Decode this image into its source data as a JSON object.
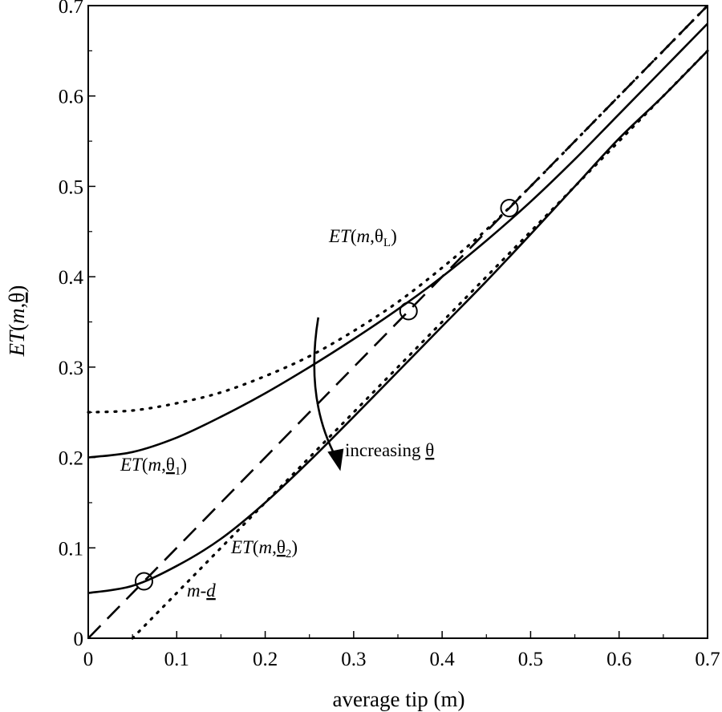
{
  "chart_data": {
    "type": "line",
    "xlabel": "average tip (m)",
    "ylabel": "ET(m,θ)",
    "xlim": [
      0,
      0.7
    ],
    "ylim": [
      0,
      0.7
    ],
    "xticks": [
      0,
      0.1,
      0.2,
      0.3,
      0.4,
      0.5,
      0.6,
      0.7
    ],
    "yticks": [
      0,
      0.1,
      0.2,
      0.3,
      0.4,
      0.5,
      0.6,
      0.7
    ],
    "xtick_labels": [
      "0",
      "0.1",
      "0.2",
      "0.3",
      "0.4",
      "0.5",
      "0.6",
      "0.7"
    ],
    "ytick_labels": [
      "0",
      "0.1",
      "0.2",
      "0.3",
      "0.4",
      "0.5",
      "0.6",
      "0.7"
    ],
    "grid": false,
    "series": [
      {
        "style": "dashed",
        "x": [
          0,
          0.7
        ],
        "y": [
          0,
          0.7
        ]
      },
      {
        "style": "dotted",
        "x": [
          0.05,
          0.7
        ],
        "y": [
          0,
          0.65
        ]
      },
      {
        "style": "dotted",
        "x": [
          0,
          0.05,
          0.1,
          0.15,
          0.2,
          0.25,
          0.3,
          0.35,
          0.4,
          0.45,
          0.5,
          0.55,
          0.6,
          0.65,
          0.7
        ],
        "y": [
          0.25,
          0.252,
          0.26,
          0.272,
          0.29,
          0.312,
          0.34,
          0.372,
          0.41,
          0.452,
          0.5,
          0.55,
          0.6,
          0.65,
          0.7
        ]
      },
      {
        "style": "solid",
        "x": [
          0,
          0.05,
          0.1,
          0.15,
          0.2,
          0.25,
          0.3,
          0.35,
          0.4,
          0.45,
          0.5,
          0.55,
          0.6,
          0.65,
          0.7
        ],
        "y": [
          0.2,
          0.206,
          0.222,
          0.245,
          0.271,
          0.3,
          0.331,
          0.364,
          0.4,
          0.44,
          0.483,
          0.53,
          0.58,
          0.63,
          0.68
        ]
      },
      {
        "style": "solid",
        "x": [
          0,
          0.05,
          0.1,
          0.15,
          0.2,
          0.25,
          0.3,
          0.35,
          0.4,
          0.45,
          0.5,
          0.55,
          0.6,
          0.65,
          0.7
        ],
        "y": [
          0.05,
          0.058,
          0.08,
          0.11,
          0.15,
          0.196,
          0.245,
          0.295,
          0.345,
          0.395,
          0.447,
          0.5,
          0.553,
          0.6,
          0.65
        ]
      }
    ],
    "markers": [
      {
        "x": 0.063,
        "y": 0.063
      },
      {
        "x": 0.362,
        "y": 0.362
      },
      {
        "x": 0.476,
        "y": 0.476
      }
    ],
    "arrow": {
      "from": [
        0.26,
        0.355
      ],
      "to": [
        0.285,
        0.185
      ]
    },
    "annotations": [
      {
        "text": "ET(m,θL)",
        "x": 0.27,
        "y": 0.44
      },
      {
        "text": "ET(m,θ1)",
        "x": 0.035,
        "y": 0.185
      },
      {
        "text": "increasing θ",
        "x": 0.29,
        "y": 0.205
      },
      {
        "text": "ET(m,θ2)",
        "x": 0.16,
        "y": 0.095
      },
      {
        "text": "m-d",
        "x": 0.11,
        "y": 0.05
      }
    ]
  }
}
